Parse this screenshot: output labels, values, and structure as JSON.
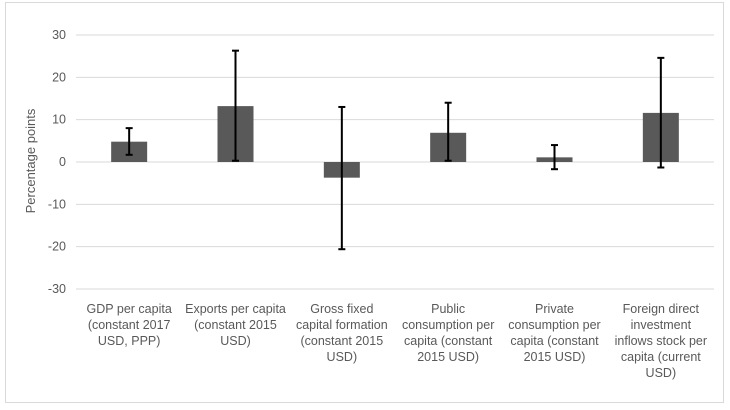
{
  "chart_data": {
    "type": "bar",
    "title": "",
    "xlabel": "",
    "ylabel": "Percentage points",
    "ylim": [
      -30,
      30
    ],
    "yticks": [
      30,
      20,
      10,
      0,
      -10,
      -20,
      -30
    ],
    "grid": true,
    "legend": "none",
    "categories": [
      [
        "GDP per capita",
        "(constant 2017",
        "USD, PPP)"
      ],
      [
        "Exports per capita",
        "(constant 2015",
        "USD)"
      ],
      [
        "Gross fixed",
        "capital formation",
        "(constant 2015",
        "USD)"
      ],
      [
        "Public",
        "consumption per",
        "capita (constant",
        "2015 USD)"
      ],
      [
        "Private",
        "consumption per",
        "capita (constant",
        "2015 USD)"
      ],
      [
        "Foreign direct",
        "investment",
        "inflows stock per",
        "capita (current",
        "USD)"
      ]
    ],
    "values": [
      4.8,
      13.2,
      -3.7,
      6.9,
      1.1,
      11.6
    ],
    "error_low": [
      1.7,
      0.3,
      -20.6,
      0.3,
      -1.7,
      -1.3
    ],
    "error_high": [
      8.0,
      26.3,
      13.0,
      14.0,
      4.0,
      24.6
    ],
    "colors": {
      "bar": "#595959",
      "error_bar": "#000000",
      "grid": "#d9d9d9"
    }
  }
}
